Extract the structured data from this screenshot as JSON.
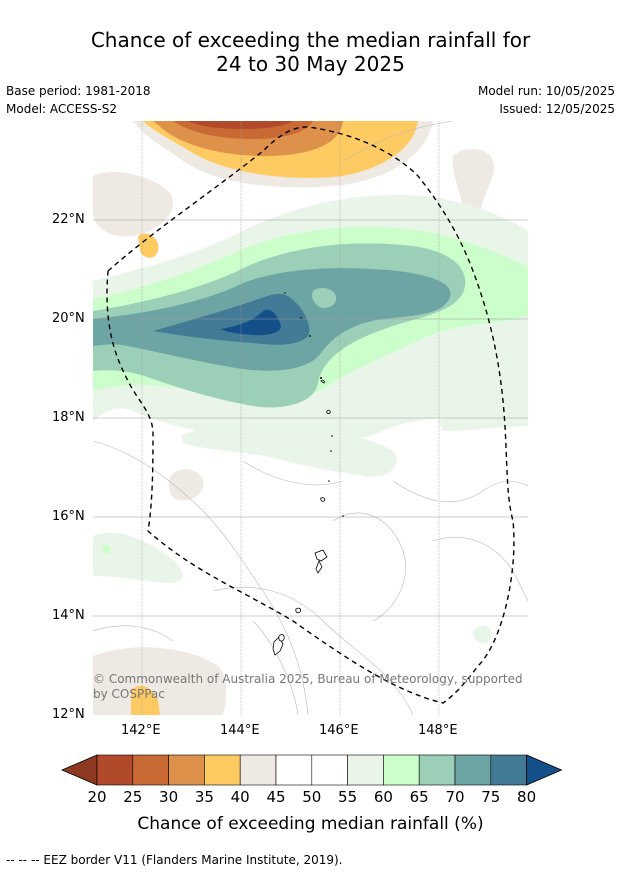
{
  "title": {
    "line1": "Chance of exceeding the median rainfall for",
    "line2": "24 to 30 May 2025"
  },
  "meta": {
    "base_period": "Base period: 1981-2018",
    "model": "Model: ACCESS-S2",
    "model_run": "Model run: 10/05/2025",
    "issued": "Issued: 12/05/2025"
  },
  "map": {
    "lat_labels": [
      "22°N",
      "20°N",
      "18°N",
      "16°N",
      "14°N",
      "12°N"
    ],
    "lon_labels": [
      "142°E",
      "144°E",
      "146°E",
      "148°E"
    ],
    "copyright": "© Commonwealth of Australia 2025, Bureau of Meteorology, supported by COSPPac",
    "colors": {
      "c20": "#8e3a22",
      "c25": "#b14a2a",
      "c30": "#c96a35",
      "c35": "#de914a",
      "c40": "#fecb62",
      "c45": "#efe9e4",
      "c55": "#eaf5ea",
      "c60": "#cbfecb",
      "c65": "#9ccfb7",
      "c70": "#6da4a4",
      "c75": "#437b96",
      "c80": "#154f8a"
    }
  },
  "legend": {
    "title": "Chance of exceeding median rainfall (%)",
    "ticks": [
      "20",
      "25",
      "30",
      "35",
      "40",
      "45",
      "50",
      "55",
      "60",
      "65",
      "70",
      "75",
      "80"
    ],
    "colors": [
      "#b14a2a",
      "#c96a35",
      "#de914a",
      "#fecb62",
      "#efe9e4",
      "#ffffff",
      "#ffffff",
      "#eaf5ea",
      "#cbfecb",
      "#9ccfb7",
      "#6da4a4",
      "#437b96"
    ],
    "under_color": "#8e3a22",
    "over_color": "#154f8a"
  },
  "footnote": "--  --  -- EEZ border V11 (Flanders Marine Institute, 2019)."
}
